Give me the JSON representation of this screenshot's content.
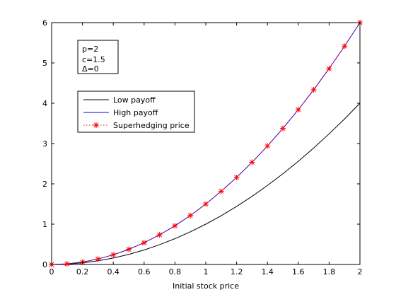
{
  "chart_data": {
    "type": "line",
    "title": "",
    "xlabel": "Initial stock price",
    "ylabel": "",
    "xlim": [
      0,
      2
    ],
    "ylim": [
      0,
      6
    ],
    "xticks": [
      "0",
      "0.2",
      "0.4",
      "0.6",
      "0.8",
      "1",
      "1.2",
      "1.4",
      "1.6",
      "1.8",
      "2"
    ],
    "yticks": [
      "0",
      "1",
      "2",
      "3",
      "4",
      "5",
      "6"
    ],
    "grid": false,
    "parameters": [
      "p=2",
      "c=1.5",
      "Δ=0"
    ],
    "legend_position": "upper-left",
    "x": [
      0,
      0.1,
      0.2,
      0.3,
      0.4,
      0.5,
      0.6,
      0.7,
      0.8,
      0.9,
      1.0,
      1.1,
      1.2,
      1.3,
      1.4,
      1.5,
      1.6,
      1.7,
      1.8,
      1.9,
      2.0
    ],
    "series": [
      {
        "name": "Low payoff",
        "color": "#000000",
        "style": "solid",
        "values": [
          0,
          0.01,
          0.04,
          0.09,
          0.16,
          0.25,
          0.36,
          0.49,
          0.64,
          0.81,
          1.0,
          1.21,
          1.44,
          1.69,
          1.96,
          2.25,
          2.56,
          2.89,
          3.24,
          3.61,
          4.0
        ]
      },
      {
        "name": "High payoff",
        "color": "#0000ff",
        "style": "solid",
        "values": [
          0,
          0.015,
          0.06,
          0.135,
          0.24,
          0.375,
          0.54,
          0.735,
          0.96,
          1.215,
          1.5,
          1.815,
          2.16,
          2.535,
          2.94,
          3.375,
          3.84,
          4.335,
          4.86,
          5.415,
          6.0
        ]
      },
      {
        "name": "Superhedging price",
        "color": "#ff0000",
        "style": "dotted",
        "marker": "*",
        "values": [
          0,
          0.015,
          0.06,
          0.135,
          0.24,
          0.375,
          0.54,
          0.735,
          0.96,
          1.215,
          1.5,
          1.815,
          2.16,
          2.535,
          2.94,
          3.375,
          3.84,
          4.335,
          4.86,
          5.415,
          6.0
        ]
      }
    ]
  }
}
